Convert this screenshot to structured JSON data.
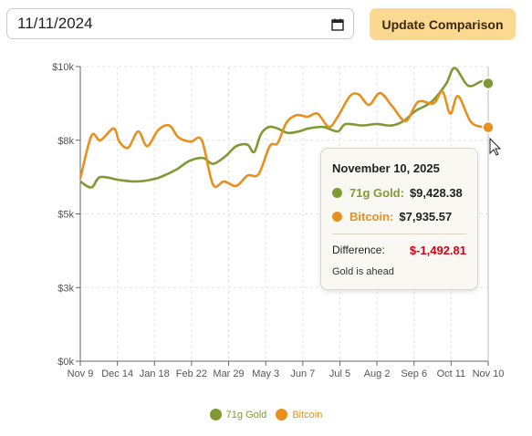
{
  "controls": {
    "date_value": "11/11/2024",
    "update_label": "Update Comparison"
  },
  "colors": {
    "gold": "#7f9a35",
    "bitcoin": "#e8901e",
    "negative": "#d0021b",
    "button_bg": "#fbd990"
  },
  "icons": {
    "calendar": "calendar-icon",
    "cursor": "mouse-pointer-icon"
  },
  "tooltip": {
    "date": "November 10, 2025",
    "rows": [
      {
        "name": "71g Gold:",
        "value": "$9,428.38"
      },
      {
        "name": "Bitcoin:",
        "value": "$7,935.57"
      }
    ],
    "difference_label": "Difference:",
    "difference_value": "$-1,492.81",
    "note": "Gold is ahead"
  },
  "legend": [
    {
      "label": "71g Gold"
    },
    {
      "label": "Bitcoin"
    }
  ],
  "chart_data": {
    "type": "line",
    "x_ticks": [
      "Nov 9",
      "Dec 14",
      "Jan 18",
      "Feb 22",
      "Mar 29",
      "May 3",
      "Jun 7",
      "Jul 5",
      "Aug 2",
      "Sep 6",
      "Oct 11",
      "Nov 10"
    ],
    "y_ticks": [
      "$0k",
      "$3k",
      "$5k",
      "$8k",
      "$10k"
    ],
    "ylim": [
      0,
      10000
    ],
    "grid": true,
    "legend_position": "bottom",
    "x_start": "2024-11-09",
    "x_end": "2025-11-10",
    "series": [
      {
        "name": "71g Gold",
        "points": [
          [
            "2024-11-09",
            6100
          ],
          [
            "2024-11-19",
            5900
          ],
          [
            "2024-11-27",
            6250
          ],
          [
            "2024-12-14",
            6150
          ],
          [
            "2024-12-28",
            6100
          ],
          [
            "2025-01-10",
            6150
          ],
          [
            "2025-01-20",
            6250
          ],
          [
            "2025-02-03",
            6500
          ],
          [
            "2025-02-15",
            6800
          ],
          [
            "2025-02-27",
            6900
          ],
          [
            "2025-03-08",
            6700
          ],
          [
            "2025-03-19",
            6950
          ],
          [
            "2025-03-29",
            7300
          ],
          [
            "2025-04-08",
            7350
          ],
          [
            "2025-04-14",
            7100
          ],
          [
            "2025-04-20",
            7700
          ],
          [
            "2025-04-27",
            7950
          ],
          [
            "2025-05-05",
            7900
          ],
          [
            "2025-05-14",
            7750
          ],
          [
            "2025-05-24",
            7800
          ],
          [
            "2025-06-02",
            7900
          ],
          [
            "2025-06-15",
            7950
          ],
          [
            "2025-06-28",
            7800
          ],
          [
            "2025-07-05",
            8050
          ],
          [
            "2025-07-20",
            8000
          ],
          [
            "2025-08-02",
            8050
          ],
          [
            "2025-08-15",
            8000
          ],
          [
            "2025-08-26",
            8150
          ],
          [
            "2025-09-06",
            8500
          ],
          [
            "2025-09-20",
            8800
          ],
          [
            "2025-10-03",
            9400
          ],
          [
            "2025-10-11",
            9950
          ],
          [
            "2025-10-23",
            9350
          ],
          [
            "2025-11-04",
            9500
          ],
          [
            "2025-11-10",
            9428.38
          ]
        ]
      },
      {
        "name": "Bitcoin",
        "points": [
          [
            "2024-11-09",
            6200
          ],
          [
            "2024-11-19",
            7650
          ],
          [
            "2024-11-27",
            7500
          ],
          [
            "2024-12-09",
            7900
          ],
          [
            "2024-12-14",
            7450
          ],
          [
            "2024-12-22",
            7250
          ],
          [
            "2024-12-31",
            7800
          ],
          [
            "2025-01-08",
            7300
          ],
          [
            "2025-01-18",
            7850
          ],
          [
            "2025-01-28",
            8000
          ],
          [
            "2025-02-05",
            7600
          ],
          [
            "2025-02-16",
            7450
          ],
          [
            "2025-02-26",
            7500
          ],
          [
            "2025-03-08",
            6000
          ],
          [
            "2025-03-18",
            6100
          ],
          [
            "2025-03-29",
            5950
          ],
          [
            "2025-04-08",
            6300
          ],
          [
            "2025-04-18",
            6350
          ],
          [
            "2025-04-28",
            7300
          ],
          [
            "2025-05-05",
            7400
          ],
          [
            "2025-05-13",
            8100
          ],
          [
            "2025-05-22",
            8350
          ],
          [
            "2025-06-01",
            8300
          ],
          [
            "2025-06-10",
            8400
          ],
          [
            "2025-06-20",
            7950
          ],
          [
            "2025-06-28",
            8300
          ],
          [
            "2025-07-09",
            9000
          ],
          [
            "2025-07-17",
            9050
          ],
          [
            "2025-07-26",
            8700
          ],
          [
            "2025-08-05",
            9100
          ],
          [
            "2025-08-16",
            8650
          ],
          [
            "2025-08-28",
            8150
          ],
          [
            "2025-09-08",
            8800
          ],
          [
            "2025-09-22",
            8750
          ],
          [
            "2025-09-30",
            9150
          ],
          [
            "2025-10-07",
            8400
          ],
          [
            "2025-10-14",
            9000
          ],
          [
            "2025-10-26",
            8100
          ],
          [
            "2025-11-10",
            7935.57
          ]
        ]
      }
    ]
  }
}
